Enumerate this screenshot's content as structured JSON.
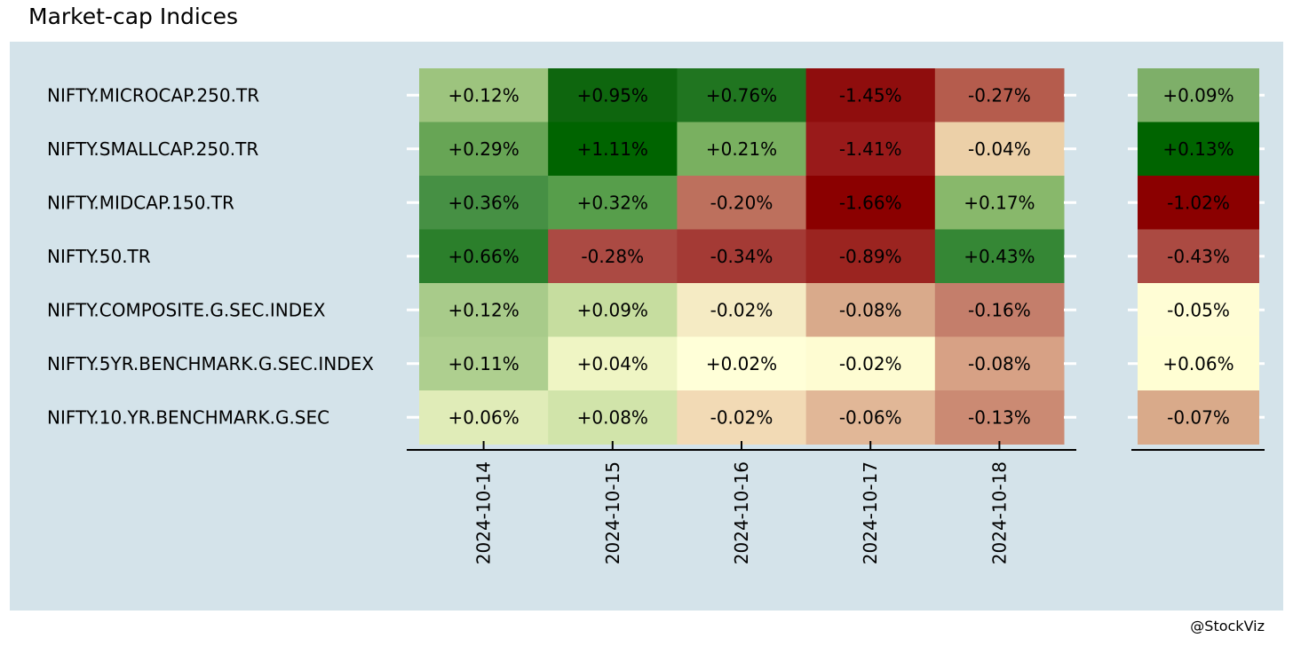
{
  "chart_data": {
    "type": "heatmap",
    "title": "Market-cap Indices",
    "rows": [
      "NIFTY.MICROCAP.250.TR",
      "NIFTY.SMALLCAP.250.TR",
      "NIFTY.MIDCAP.150.TR",
      "NIFTY.50.TR",
      "NIFTY.COMPOSITE.G.SEC.INDEX",
      "NIFTY.5YR.BENCHMARK.G.SEC.INDEX",
      "NIFTY.10.YR.BENCHMARK.G.SEC"
    ],
    "columns": [
      "2024-10-14",
      "2024-10-15",
      "2024-10-16",
      "2024-10-17",
      "2024-10-18"
    ],
    "values": [
      [
        0.12,
        0.95,
        0.76,
        -1.45,
        -0.27
      ],
      [
        0.29,
        1.11,
        0.21,
        -1.41,
        -0.04
      ],
      [
        0.36,
        0.32,
        -0.2,
        -1.66,
        0.17
      ],
      [
        0.66,
        -0.28,
        -0.34,
        -0.89,
        0.43
      ],
      [
        0.12,
        0.09,
        -0.02,
        -0.08,
        -0.16
      ],
      [
        0.11,
        0.04,
        0.02,
        -0.02,
        -0.08
      ],
      [
        0.06,
        0.08,
        -0.02,
        -0.06,
        -0.13
      ]
    ],
    "labels": [
      [
        "+0.12%",
        "+0.95%",
        "+0.76%",
        "-1.45%",
        "-0.27%"
      ],
      [
        "+0.29%",
        "+1.11%",
        "+0.21%",
        "-1.41%",
        "-0.04%"
      ],
      [
        "+0.36%",
        "+0.32%",
        "-0.20%",
        "-1.66%",
        "+0.17%"
      ],
      [
        "+0.66%",
        "-0.28%",
        "-0.34%",
        "-0.89%",
        "+0.43%"
      ],
      [
        "+0.12%",
        "+0.09%",
        "-0.02%",
        "-0.08%",
        "-0.16%"
      ],
      [
        "+0.11%",
        "+0.04%",
        "+0.02%",
        "-0.02%",
        "-0.08%"
      ],
      [
        "+0.06%",
        "+0.08%",
        "-0.02%",
        "-0.06%",
        "-0.13%"
      ]
    ],
    "colors": [
      [
        "#9dc47e",
        "#0e660e",
        "#207520",
        "#8f0d0d",
        "#b55c4d"
      ],
      [
        "#67a555",
        "#006400",
        "#79b060",
        "#991a1a",
        "#ecd0a8"
      ],
      [
        "#469044",
        "#579e4b",
        "#bd705d",
        "#8b0000",
        "#88b86b"
      ],
      [
        "#2b7f2b",
        "#ab4a43",
        "#a43a35",
        "#9b2420",
        "#358735"
      ],
      [
        "#a8cb8a",
        "#c6dd9f",
        "#f5ebc4",
        "#d9aa8b",
        "#c47e6b"
      ],
      [
        "#aecf8f",
        "#eff5c4",
        "#ffffd8",
        "#fefcd2",
        "#d7a185"
      ],
      [
        "#e0ecb8",
        "#d1e4aa",
        "#f2dab5",
        "#e1b797",
        "#cb8a73"
      ]
    ],
    "summary": {
      "values": [
        0.09,
        0.13,
        -1.02,
        -0.43,
        -0.05,
        0.06,
        -0.07
      ],
      "labels": [
        "+0.09%",
        "+0.13%",
        "-1.02%",
        "-0.43%",
        "-0.05%",
        "+0.06%",
        "-0.07%"
      ],
      "colors": [
        "#7eaf69",
        "#006400",
        "#8b0000",
        "#ab4a42",
        "#fffdd5",
        "#fffed3",
        "#d9aa8a"
      ]
    },
    "background_color": "#d4e3ea",
    "grid": false
  },
  "footer": {
    "credit": "@StockViz"
  }
}
